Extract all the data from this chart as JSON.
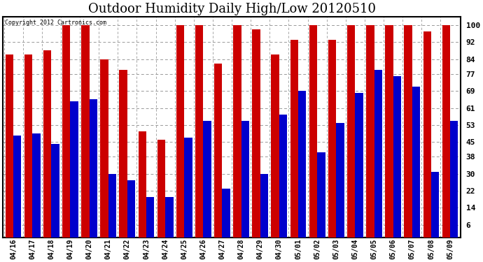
{
  "title": "Outdoor Humidity Daily High/Low 20120510",
  "copyright": "Copyright 2012 Cartronics.com",
  "dates": [
    "04/16",
    "04/17",
    "04/18",
    "04/19",
    "04/20",
    "04/21",
    "04/22",
    "04/23",
    "04/24",
    "04/25",
    "04/26",
    "04/27",
    "04/28",
    "04/29",
    "04/30",
    "05/01",
    "05/02",
    "05/03",
    "05/04",
    "05/05",
    "05/06",
    "05/07",
    "05/08",
    "05/09"
  ],
  "highs": [
    86,
    86,
    88,
    100,
    100,
    84,
    79,
    50,
    46,
    100,
    100,
    82,
    100,
    98,
    86,
    93,
    100,
    93,
    100,
    100,
    100,
    100,
    97,
    100
  ],
  "lows": [
    48,
    49,
    44,
    64,
    65,
    30,
    27,
    19,
    19,
    47,
    55,
    23,
    55,
    30,
    58,
    69,
    40,
    54,
    68,
    79,
    76,
    71,
    31,
    55
  ],
  "high_color": "#cc0000",
  "low_color": "#0000cc",
  "background_color": "#ffffff",
  "plot_bg_color": "#ffffff",
  "ylim": [
    0,
    104
  ],
  "yticks": [
    6,
    14,
    22,
    30,
    38,
    45,
    53,
    61,
    69,
    77,
    84,
    92,
    100
  ],
  "title_fontsize": 13,
  "grid_color": "#999999",
  "border_color": "#000000"
}
